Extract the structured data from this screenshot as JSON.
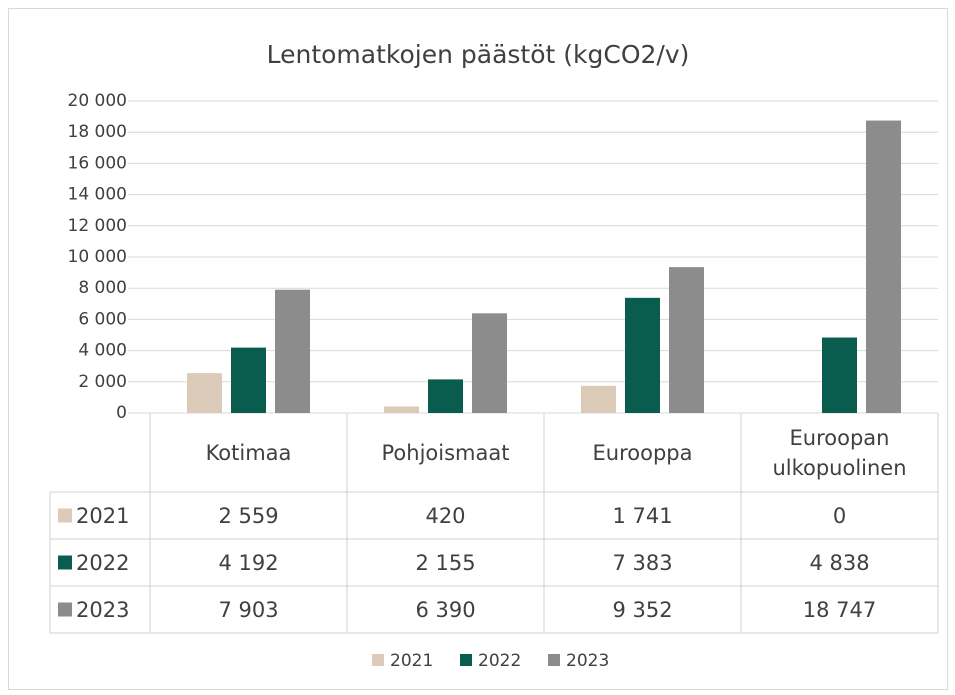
{
  "chart_data": {
    "type": "bar",
    "title": "Lentomatkojen päästöt (kgCO2/v)",
    "categories": [
      "Kotimaa",
      "Pohjoismaat",
      "Eurooppa",
      "Euroopan ulkopuolinen"
    ],
    "series": [
      {
        "name": "2021",
        "color": "#dccbb8",
        "values": [
          2559,
          420,
          1741,
          0
        ],
        "value_labels": [
          "2 559",
          "420",
          "1 741",
          "0"
        ]
      },
      {
        "name": "2022",
        "color": "#0a5c4f",
        "values": [
          4192,
          2155,
          7383,
          4838
        ],
        "value_labels": [
          "4 192",
          "2 155",
          "7 383",
          "4 838"
        ]
      },
      {
        "name": "2023",
        "color": "#8c8c8c",
        "values": [
          7903,
          6390,
          9352,
          18747
        ],
        "value_labels": [
          "7 903",
          "6 390",
          "9 352",
          "18 747"
        ]
      }
    ],
    "ylim": [
      0,
      20000
    ],
    "yticks": [
      0,
      {
        "value": 2000,
        "label": "2 000"
      },
      {
        "value": 4000,
        "label": "4 000"
      },
      {
        "value": 6000,
        "label": "6 000"
      },
      {
        "value": 8000,
        "label": "8 000"
      },
      {
        "value": 10000,
        "label": "10 000"
      },
      {
        "value": 12000,
        "label": "12 000"
      },
      {
        "value": 14000,
        "label": "14 000"
      },
      {
        "value": 16000,
        "label": "16 000"
      },
      {
        "value": 18000,
        "label": "18 000"
      },
      {
        "value": 20000,
        "label": "20 000"
      }
    ],
    "grid": true,
    "legend": "bottom",
    "data_table": true
  }
}
